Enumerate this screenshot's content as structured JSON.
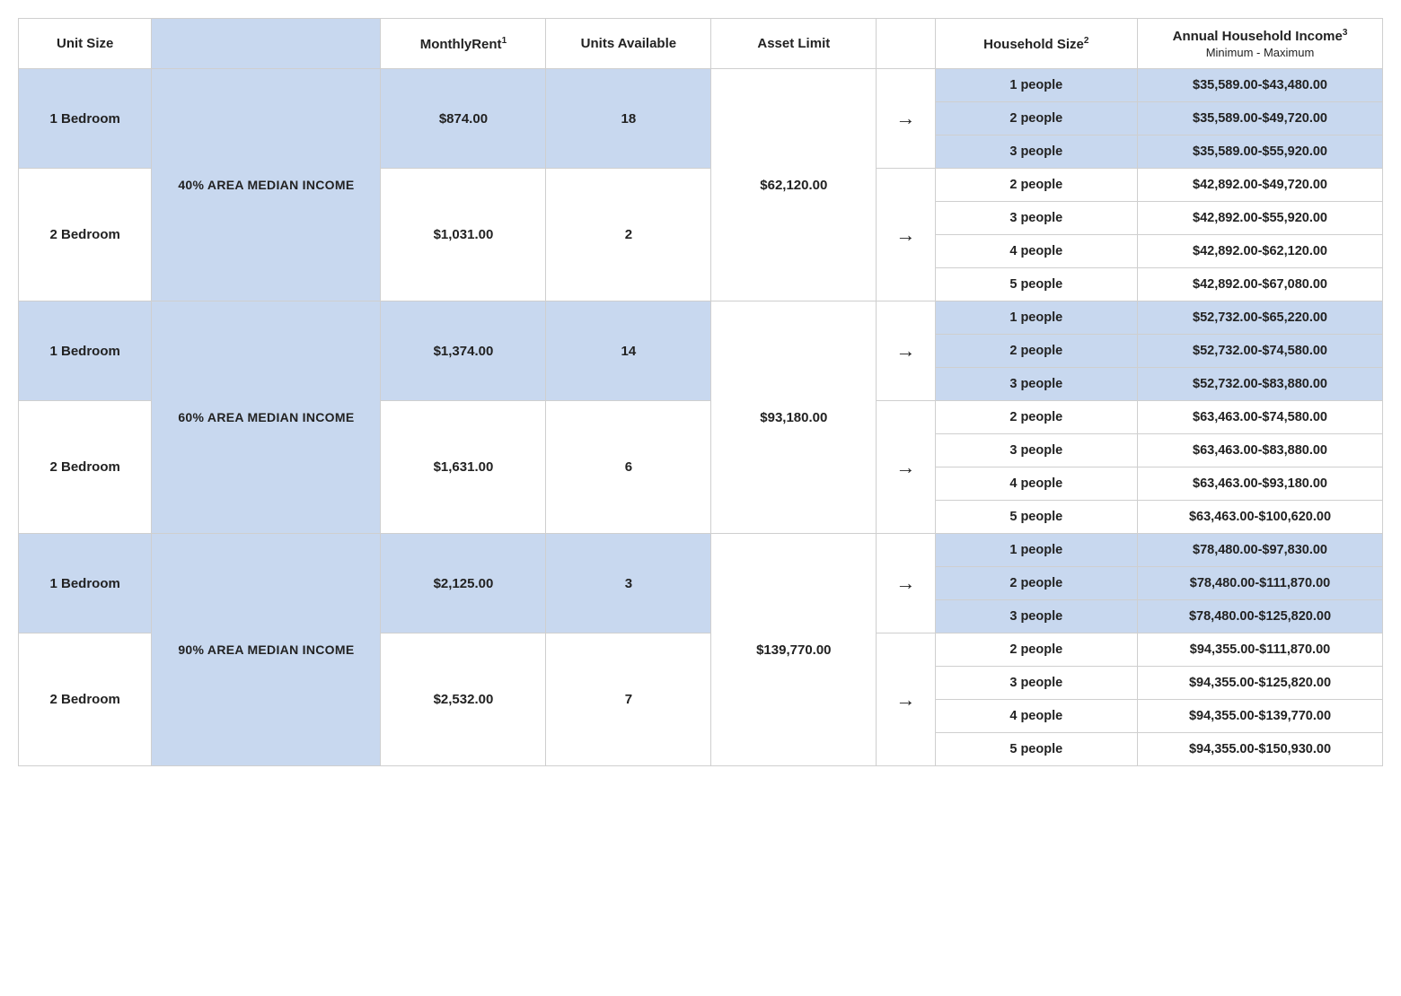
{
  "colors": {
    "tint": "#c8d8ef",
    "border": "#cfcfcf",
    "text": "#222222",
    "background": "#ffffff"
  },
  "headers": {
    "unit_size": "Unit Size",
    "monthly_rent": "MonthlyRent",
    "monthly_rent_sup": "1",
    "units_available": "Units Available",
    "asset_limit": "Asset Limit",
    "household_size": "Household Size",
    "household_size_sup": "2",
    "annual_income": "Annual Household Income",
    "annual_income_sup": "3",
    "annual_income_sub": "Minimum - Maximum"
  },
  "arrow_glyph": "→",
  "tiers": [
    {
      "ami_label": "40% AREA MEDIAN INCOME",
      "asset_limit": "$62,120.00",
      "units": [
        {
          "unit_size": "1 Bedroom",
          "monthly_rent": "$874.00",
          "units_available": "18",
          "tinted": true,
          "households": [
            {
              "size": "1 people",
              "income": "$35,589.00-$43,480.00"
            },
            {
              "size": "2 people",
              "income": "$35,589.00-$49,720.00"
            },
            {
              "size": "3 people",
              "income": "$35,589.00-$55,920.00"
            }
          ]
        },
        {
          "unit_size": "2 Bedroom",
          "monthly_rent": "$1,031.00",
          "units_available": "2",
          "tinted": false,
          "households": [
            {
              "size": "2 people",
              "income": "$42,892.00-$49,720.00"
            },
            {
              "size": "3 people",
              "income": "$42,892.00-$55,920.00"
            },
            {
              "size": "4 people",
              "income": "$42,892.00-$62,120.00"
            },
            {
              "size": "5 people",
              "income": "$42,892.00-$67,080.00"
            }
          ]
        }
      ]
    },
    {
      "ami_label": "60% AREA MEDIAN INCOME",
      "asset_limit": "$93,180.00",
      "units": [
        {
          "unit_size": "1 Bedroom",
          "monthly_rent": "$1,374.00",
          "units_available": "14",
          "tinted": true,
          "households": [
            {
              "size": "1 people",
              "income": "$52,732.00-$65,220.00"
            },
            {
              "size": "2 people",
              "income": "$52,732.00-$74,580.00"
            },
            {
              "size": "3 people",
              "income": "$52,732.00-$83,880.00"
            }
          ]
        },
        {
          "unit_size": "2 Bedroom",
          "monthly_rent": "$1,631.00",
          "units_available": "6",
          "tinted": false,
          "households": [
            {
              "size": "2 people",
              "income": "$63,463.00-$74,580.00"
            },
            {
              "size": "3 people",
              "income": "$63,463.00-$83,880.00"
            },
            {
              "size": "4 people",
              "income": "$63,463.00-$93,180.00"
            },
            {
              "size": "5 people",
              "income": "$63,463.00-$100,620.00"
            }
          ]
        }
      ]
    },
    {
      "ami_label": "90% AREA MEDIAN INCOME",
      "asset_limit": "$139,770.00",
      "units": [
        {
          "unit_size": "1 Bedroom",
          "monthly_rent": "$2,125.00",
          "units_available": "3",
          "tinted": true,
          "households": [
            {
              "size": "1 people",
              "income": "$78,480.00-$97,830.00"
            },
            {
              "size": "2 people",
              "income": "$78,480.00-$111,870.00"
            },
            {
              "size": "3 people",
              "income": "$78,480.00-$125,820.00"
            }
          ]
        },
        {
          "unit_size": "2 Bedroom",
          "monthly_rent": "$2,532.00",
          "units_available": "7",
          "tinted": false,
          "households": [
            {
              "size": "2 people",
              "income": "$94,355.00-$111,870.00"
            },
            {
              "size": "3 people",
              "income": "$94,355.00-$125,820.00"
            },
            {
              "size": "4 people",
              "income": "$94,355.00-$139,770.00"
            },
            {
              "size": "5 people",
              "income": "$94,355.00-$150,930.00"
            }
          ]
        }
      ]
    }
  ]
}
